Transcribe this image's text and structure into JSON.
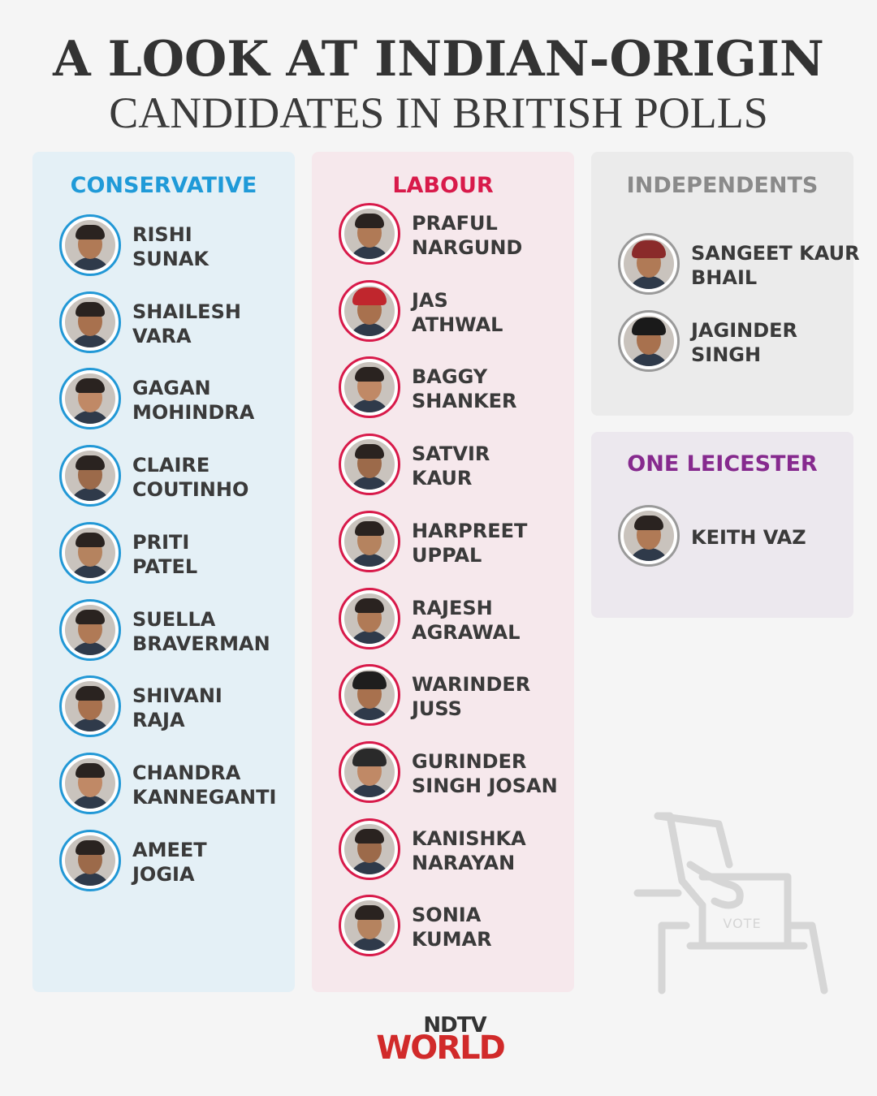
{
  "title": {
    "line1": "A LOOK AT INDIAN-ORIGIN",
    "line2": "CANDIDATES IN BRITISH POLLS"
  },
  "panels": {
    "conservative": {
      "heading": "CONSERVATIVE",
      "color": "#1f9ad8",
      "candidates": [
        {
          "line1": "RISHI",
          "line2": "SUNAK"
        },
        {
          "line1": "SHAILESH",
          "line2": "VARA"
        },
        {
          "line1": "GAGAN",
          "line2": "MOHINDRA"
        },
        {
          "line1": "CLAIRE",
          "line2": "COUTINHO"
        },
        {
          "line1": "PRITI",
          "line2": "PATEL"
        },
        {
          "line1": "SUELLA",
          "line2": "BRAVERMAN"
        },
        {
          "line1": "SHIVANI",
          "line2": "RAJA"
        },
        {
          "line1": "CHANDRA",
          "line2": "KANNEGANTI"
        },
        {
          "line1": "AMEET",
          "line2": "JOGIA"
        }
      ]
    },
    "labour": {
      "heading": "LABOUR",
      "color": "#d81a4a",
      "candidates": [
        {
          "line1": "PRAFUL",
          "line2": "NARGUND"
        },
        {
          "line1": "JAS",
          "line2": "ATHWAL"
        },
        {
          "line1": "BAGGY",
          "line2": "SHANKER"
        },
        {
          "line1": "SATVIR",
          "line2": "KAUR"
        },
        {
          "line1": "HARPREET",
          "line2": "UPPAL"
        },
        {
          "line1": "RAJESH",
          "line2": "AGRAWAL"
        },
        {
          "line1": "WARINDER",
          "line2": "JUSS"
        },
        {
          "line1": "GURINDER",
          "line2": "SINGH JOSAN"
        },
        {
          "line1": "KANISHKA",
          "line2": "NARAYAN"
        },
        {
          "line1": "SONIA",
          "line2": "KUMAR"
        }
      ]
    },
    "independents": {
      "heading": "INDEPENDENTS",
      "color": "#8a8a8a",
      "candidates": [
        {
          "line1": "SANGEET KAUR",
          "line2": "BHAIL"
        },
        {
          "line1": "JAGINDER",
          "line2": "SINGH"
        }
      ]
    },
    "one_leicester": {
      "heading": "ONE LEICESTER",
      "color": "#862a8e",
      "candidates": [
        {
          "line1": "KEITH VAZ",
          "line2": ""
        }
      ]
    }
  },
  "ballot": {
    "label": "VOTE",
    "icon": "ballot-box-icon"
  },
  "logo": {
    "line1": "NDTV",
    "line2": "WORLD"
  }
}
